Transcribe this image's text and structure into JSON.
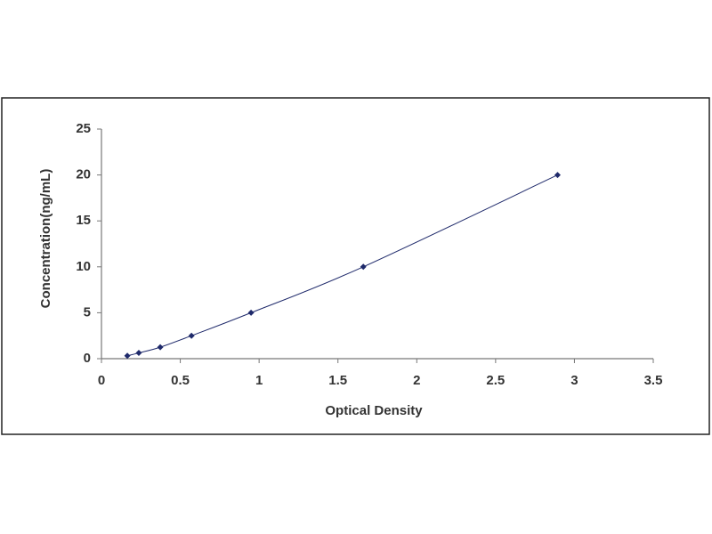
{
  "chart_data": {
    "type": "line",
    "x_label": "Optical Density",
    "y_label": "Concentration(ng/mL)",
    "x": [
      0.164,
      0.237,
      0.373,
      0.571,
      0.949,
      1.661,
      2.893
    ],
    "values": [
      0.31,
      0.625,
      1.25,
      2.5,
      5,
      10,
      20
    ],
    "color": "#1f2a6b",
    "xlim": [
      0,
      3.5
    ],
    "xticks": [
      0,
      0.5,
      1,
      1.5,
      2,
      2.5,
      3,
      3.5
    ],
    "ylim": [
      0,
      25
    ],
    "yticks": [
      0,
      5,
      10,
      15,
      20,
      25
    ],
    "grid": false,
    "markers": true
  }
}
